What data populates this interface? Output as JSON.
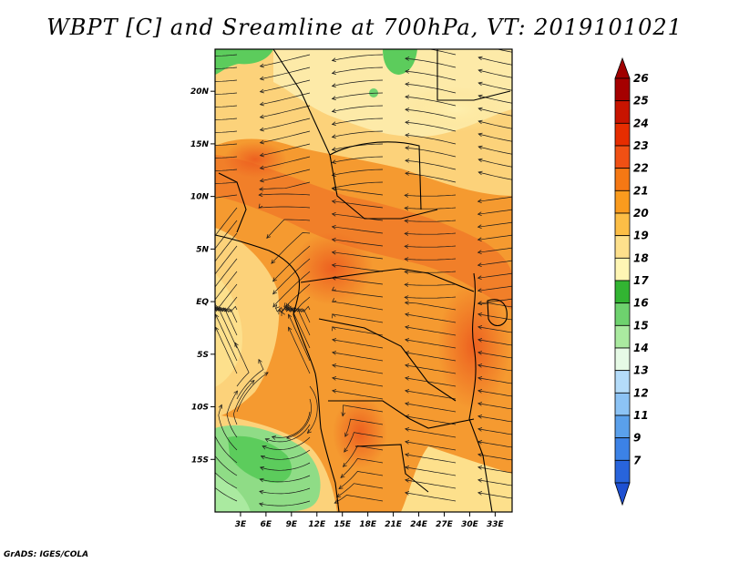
{
  "title": "WBPT [C] and Sreamline at 700hPa, VT: 2019101021",
  "footer": "GrADS: IGES/COLA",
  "map": {
    "lon_range": [
      0,
      35
    ],
    "lat_range": [
      -20,
      24
    ],
    "lat_ticks": [
      {
        "value": 20,
        "label": "20N"
      },
      {
        "value": 15,
        "label": "15N"
      },
      {
        "value": 10,
        "label": "10N"
      },
      {
        "value": 5,
        "label": "5N"
      },
      {
        "value": 0,
        "label": "EQ"
      },
      {
        "value": -5,
        "label": "5S"
      },
      {
        "value": -10,
        "label": "10S"
      },
      {
        "value": -15,
        "label": "15S"
      }
    ],
    "lon_ticks": [
      {
        "value": 3,
        "label": "3E"
      },
      {
        "value": 6,
        "label": "6E"
      },
      {
        "value": 9,
        "label": "9E"
      },
      {
        "value": 12,
        "label": "12E"
      },
      {
        "value": 15,
        "label": "15E"
      },
      {
        "value": 18,
        "label": "18E"
      },
      {
        "value": 21,
        "label": "21E"
      },
      {
        "value": 24,
        "label": "24E"
      },
      {
        "value": 27,
        "label": "27E"
      },
      {
        "value": 30,
        "label": "30E"
      },
      {
        "value": 33,
        "label": "33E"
      }
    ]
  },
  "colorbar": {
    "levels": [
      {
        "label": "26",
        "color": "#a50000"
      },
      {
        "label": "25",
        "color": "#c81400"
      },
      {
        "label": "24",
        "color": "#e62d00"
      },
      {
        "label": "23",
        "color": "#f05014"
      },
      {
        "label": "22",
        "color": "#f57814"
      },
      {
        "label": "21",
        "color": "#fa9b1e"
      },
      {
        "label": "20",
        "color": "#fcbe46"
      },
      {
        "label": "19",
        "color": "#fde08c"
      },
      {
        "label": "18",
        "color": "#fff6b4"
      },
      {
        "label": "17",
        "color": "#32b432"
      },
      {
        "label": "16",
        "color": "#6ed26e"
      },
      {
        "label": "15",
        "color": "#aaeaa0"
      },
      {
        "label": "14",
        "color": "#e6fae6"
      },
      {
        "label": "13",
        "color": "#b4dcfa"
      },
      {
        "label": "12",
        "color": "#8cc3f5"
      },
      {
        "label": "11",
        "color": "#5aa0eb"
      },
      {
        "label": "9",
        "color": "#3c82e6"
      },
      {
        "label": "7",
        "color": "#2864dc"
      }
    ],
    "top_arrow_color": "#a00000",
    "bottom_arrow_color": "#1e50d2"
  }
}
